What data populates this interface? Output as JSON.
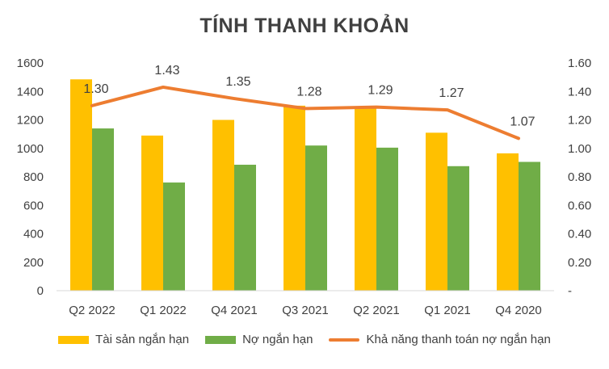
{
  "chart_data": {
    "type": "bar",
    "title": "TÍNH THANH KHOẢN",
    "categories": [
      "Q2 2022",
      "Q1 2022",
      "Q4 2021",
      "Q3 2021",
      "Q2 2021",
      "Q1 2021",
      "Q4 2020"
    ],
    "series": [
      {
        "name": "Tài sản ngắn hạn",
        "type": "bar",
        "axis": "left",
        "color": "#FFC000",
        "values": [
          1485,
          1090,
          1200,
          1300,
          1290,
          1110,
          965
        ]
      },
      {
        "name": "Nợ ngắn hạn",
        "type": "bar",
        "axis": "left",
        "color": "#70AD47",
        "values": [
          1140,
          760,
          885,
          1020,
          1005,
          875,
          905
        ]
      },
      {
        "name": "Khả năng thanh toán nợ ngắn hạn",
        "type": "line",
        "axis": "right",
        "color": "#ED7D31",
        "values": [
          1.3,
          1.43,
          1.35,
          1.28,
          1.29,
          1.27,
          1.07
        ],
        "data_labels": [
          "1.30",
          "1.43",
          "1.35",
          "1.28",
          "1.29",
          "1.27",
          "1.07"
        ]
      }
    ],
    "y_left": {
      "ylim": [
        0,
        1600
      ],
      "ticks": [
        "0",
        "200",
        "400",
        "600",
        "800",
        "1000",
        "1200",
        "1400",
        "1600"
      ]
    },
    "y_right": {
      "ylim": [
        0,
        1.6
      ],
      "ticks": [
        "-",
        "0.20",
        "0.40",
        "0.60",
        "0.80",
        "1.00",
        "1.20",
        "1.40",
        "1.60"
      ]
    },
    "grid": false,
    "legend": "bottom"
  }
}
